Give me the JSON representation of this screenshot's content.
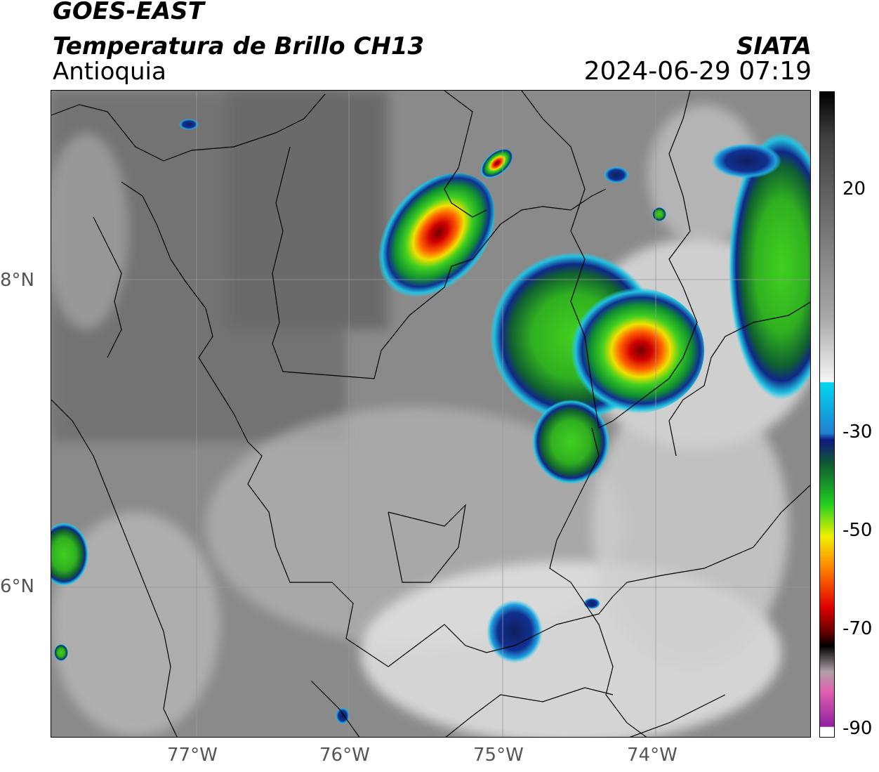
{
  "header": {
    "satellite": "GOES-EAST",
    "product": "Temperatura de Brillo CH13",
    "region": "Antioquia",
    "org": "SIATA",
    "datetime": "2024-06-29 07:19"
  },
  "map": {
    "lat_labels": [
      "8°N",
      "6°N"
    ],
    "lon_labels": [
      "77°W",
      "76°W",
      "75°W",
      "74°W"
    ]
  },
  "colorbar": {
    "ticks": [
      "20",
      "-30",
      "-50",
      "-70",
      "-90"
    ],
    "colors": {
      "gray_warm": "#6a6a6a",
      "gray_cool": "#d8d8d8",
      "cyan": "#20d8f0",
      "blue": "#1030a0",
      "green": "#20c020",
      "yellow": "#f0f000",
      "orange": "#ff8000",
      "red": "#e00000",
      "dark_red": "#700000",
      "black": "#000000",
      "magenta": "#c030c0"
    }
  }
}
